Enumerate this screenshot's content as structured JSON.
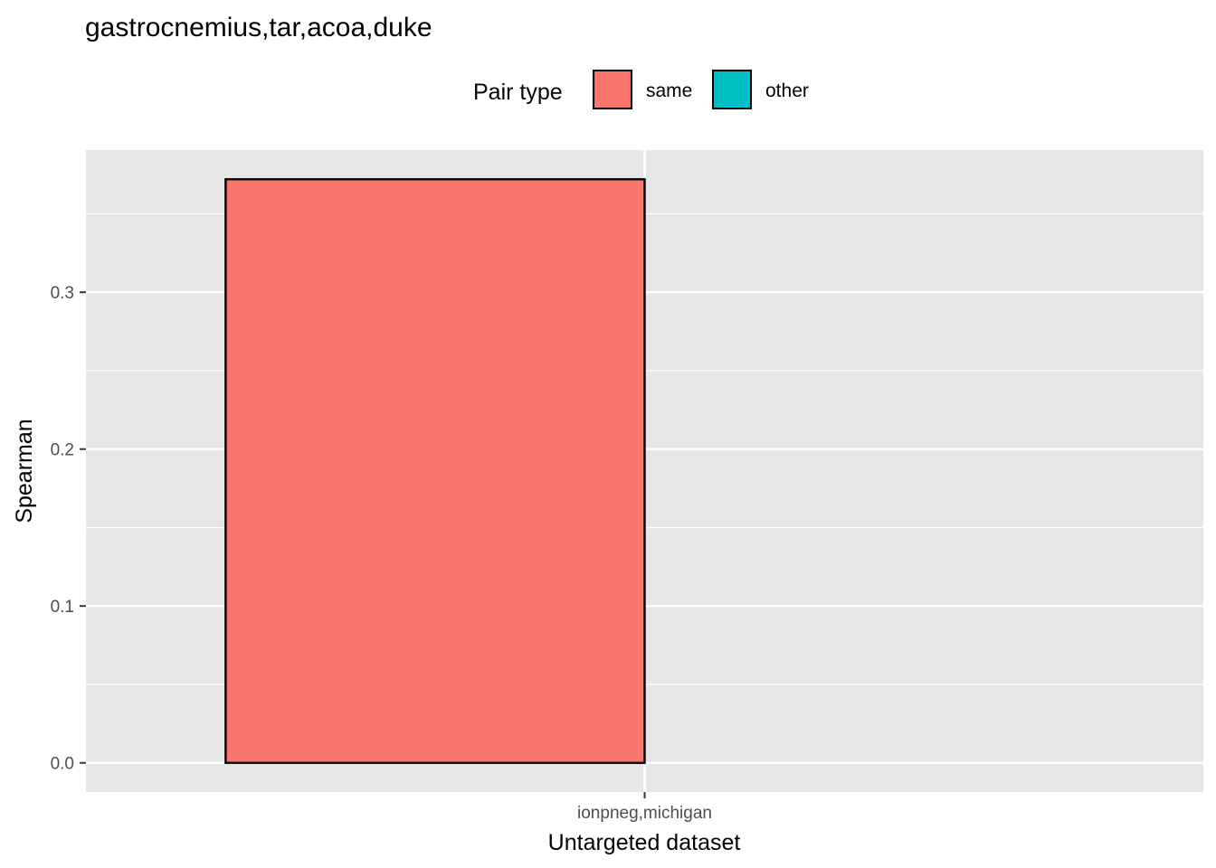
{
  "chart_data": {
    "type": "bar",
    "title": "gastrocnemius,tar,acoa,duke",
    "xlabel": "Untargeted dataset",
    "ylabel": "Spearman",
    "categories": [
      "ionpneg,michigan"
    ],
    "series": [
      {
        "name": "same",
        "color": "#F8766D",
        "values": [
          0.372
        ]
      },
      {
        "name": "other",
        "color": "#00BFC4",
        "values": [
          null
        ]
      }
    ],
    "legend": {
      "title": "Pair type",
      "placement": "top"
    },
    "yticks": [
      0.0,
      0.1,
      0.2,
      0.3
    ],
    "ytick_labels": [
      "0.0",
      "0.1",
      "0.2",
      "0.3"
    ],
    "ylim": [
      -0.0186,
      0.3906
    ],
    "grid": true,
    "panel_background": "#E6E6E6"
  }
}
